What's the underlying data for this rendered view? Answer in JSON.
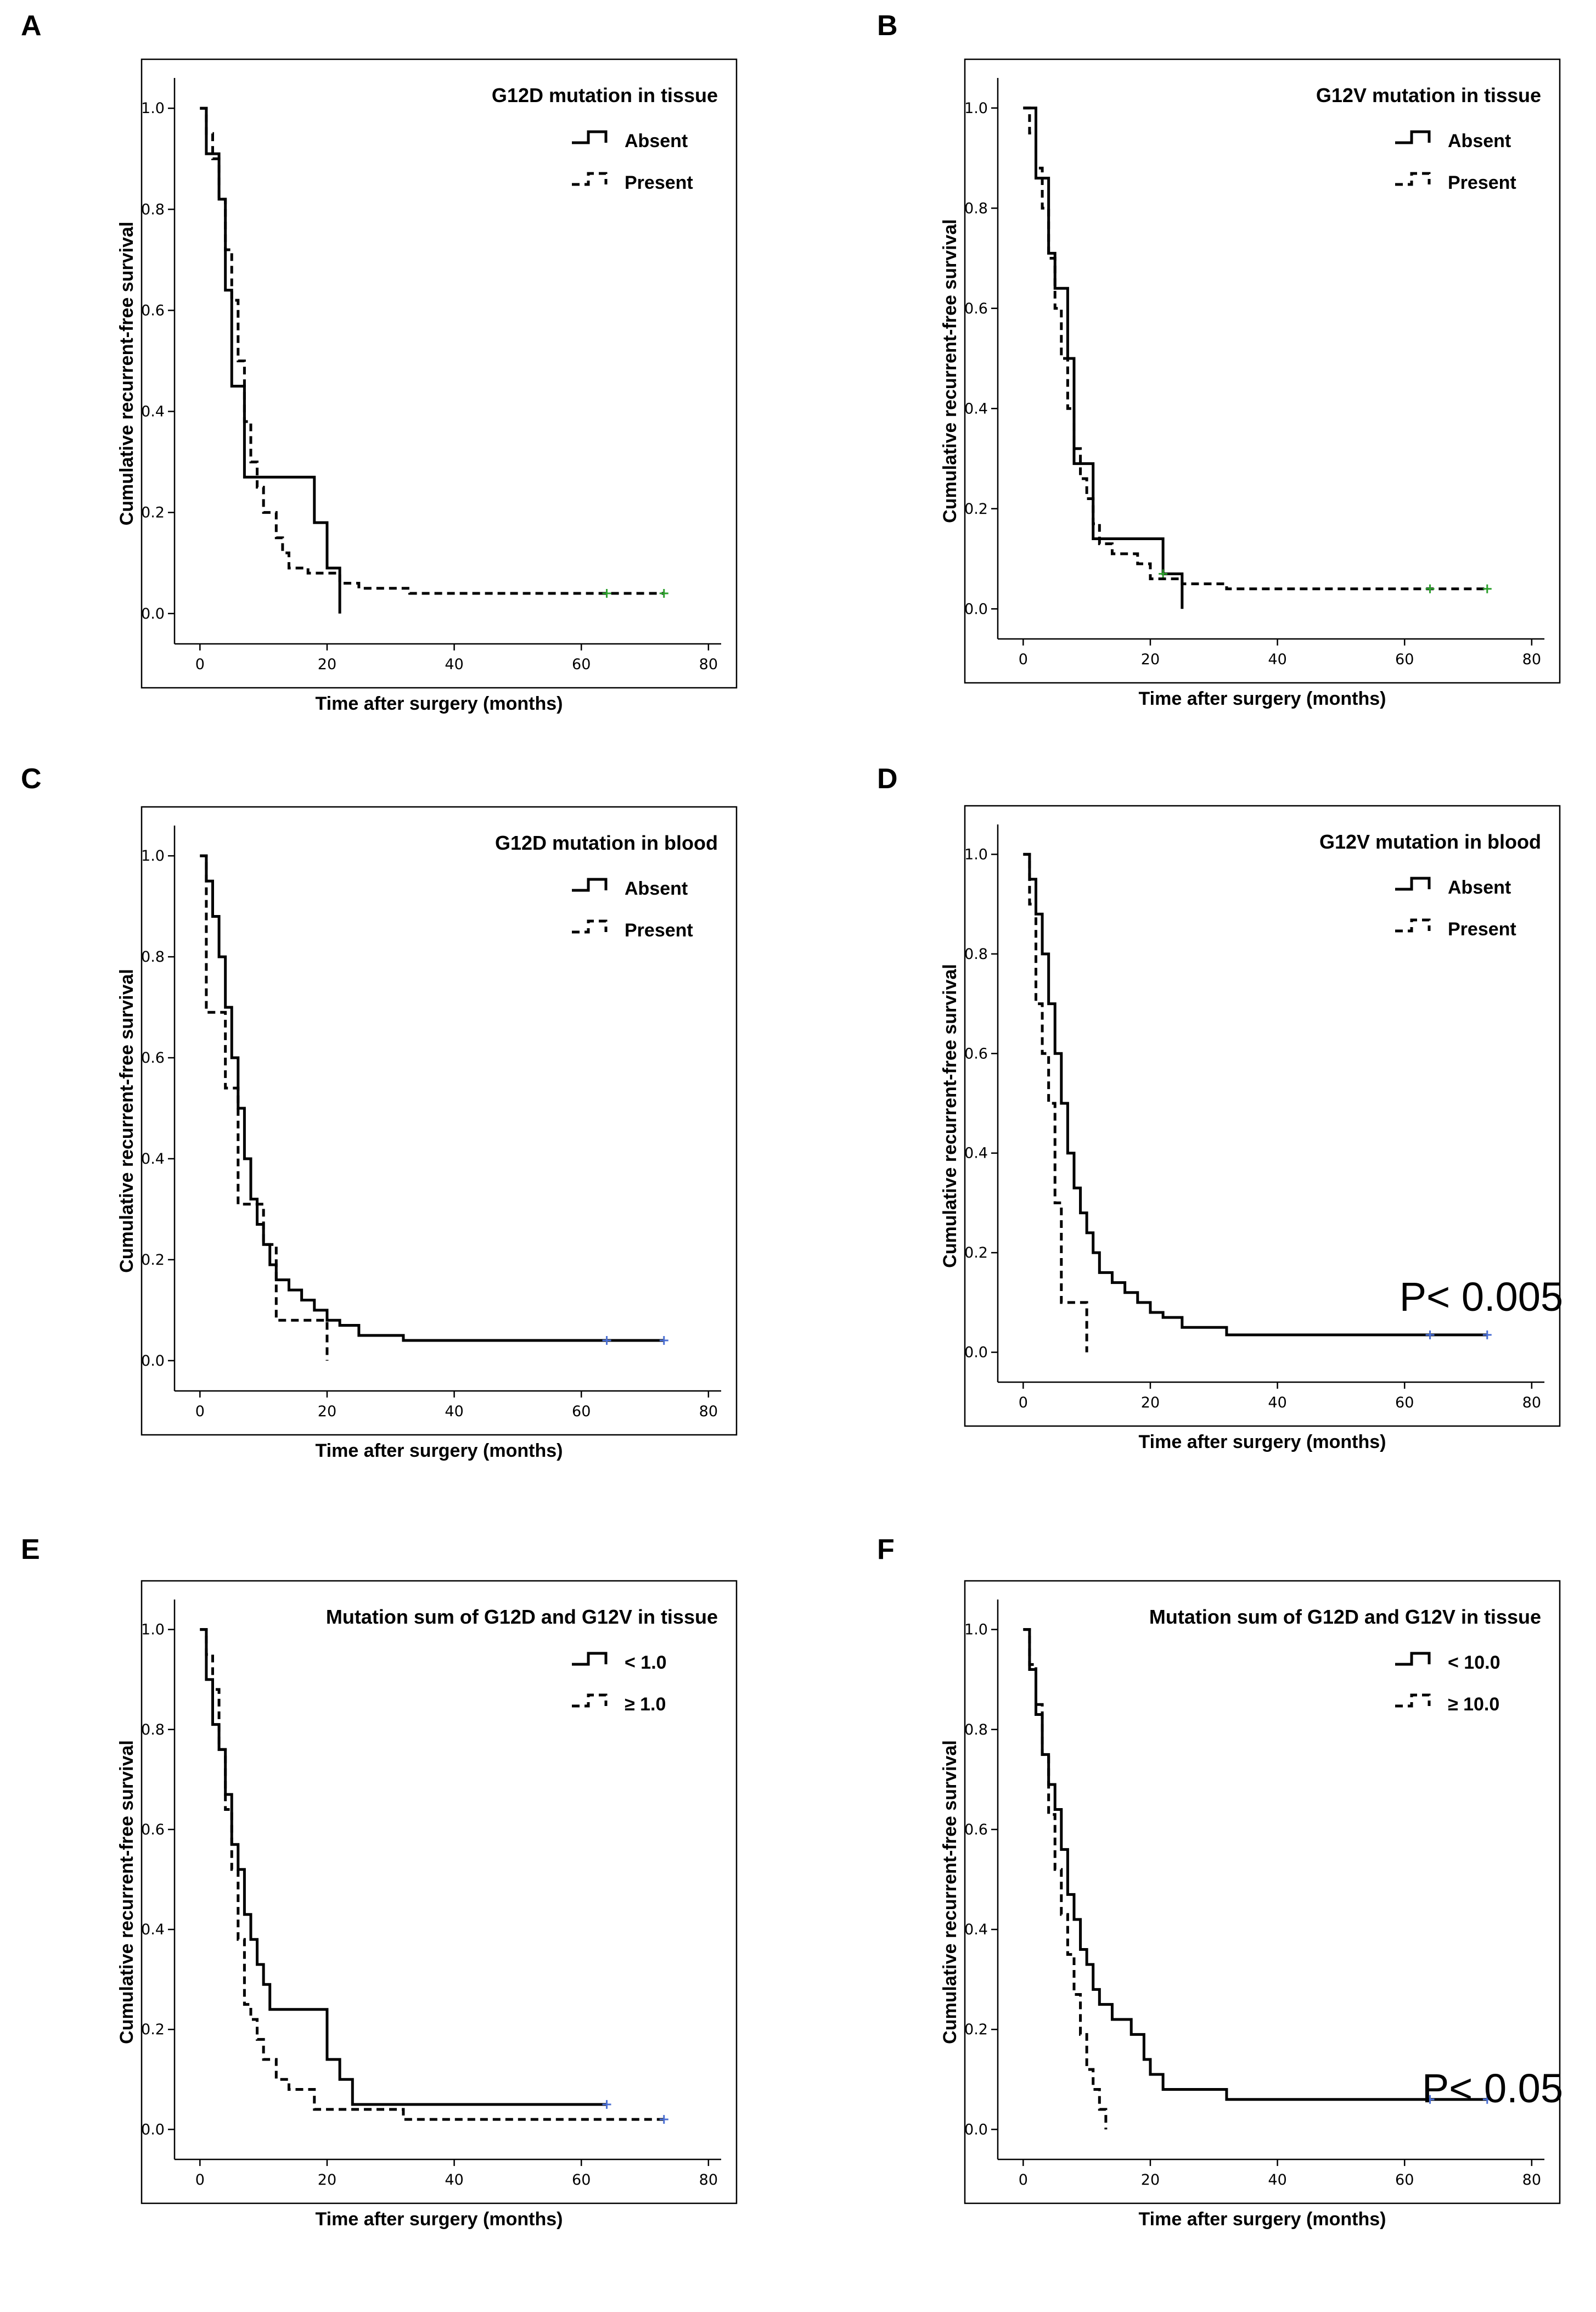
{
  "chart_data": [
    {
      "panel": "A",
      "type": "line",
      "subtype": "kaplan-meier step",
      "title": "G12D mutation in tissue",
      "xlabel": "Time after surgery (months)",
      "ylabel": "Cumulative recurrent-free survival",
      "xlim": [
        -4,
        82
      ],
      "ylim": [
        -0.06,
        1.06
      ],
      "xticks": [
        0,
        20,
        40,
        60,
        80
      ],
      "yticks": [
        0.0,
        0.2,
        0.4,
        0.6,
        0.8,
        1.0
      ],
      "xtick_labels": [
        "0",
        "20",
        "40",
        "60",
        "80"
      ],
      "ytick_labels": [
        "0.0",
        "0.2",
        "0.4",
        "0.6",
        "0.8",
        "1.0"
      ],
      "legend": [
        "Absent",
        "Present"
      ],
      "censor_color": "#2ca02c",
      "series": [
        {
          "name": "Absent",
          "style": "solid",
          "x": [
            0,
            1,
            3,
            4,
            5,
            6,
            7,
            18,
            20,
            22
          ],
          "y": [
            1.0,
            0.91,
            0.82,
            0.64,
            0.45,
            0.45,
            0.27,
            0.18,
            0.09,
            0.0
          ],
          "censored_x": []
        },
        {
          "name": "Present",
          "style": "dashed",
          "x": [
            0,
            1,
            2,
            3,
            4,
            5,
            6,
            7,
            8,
            9,
            10,
            12,
            13,
            14,
            17,
            22,
            25,
            33,
            73
          ],
          "y": [
            1.0,
            0.95,
            0.9,
            0.82,
            0.72,
            0.62,
            0.5,
            0.38,
            0.3,
            0.25,
            0.2,
            0.15,
            0.12,
            0.09,
            0.08,
            0.06,
            0.05,
            0.04,
            0.04
          ],
          "censored_x": [
            64,
            73
          ]
        }
      ]
    },
    {
      "panel": "B",
      "type": "line",
      "subtype": "kaplan-meier step",
      "title": "G12V mutation in tissue",
      "xlabel": "Time after surgery (months)",
      "ylabel": "Cumulative recurrent-free survival",
      "xlim": [
        -4,
        82
      ],
      "ylim": [
        -0.06,
        1.06
      ],
      "xticks": [
        0,
        20,
        40,
        60,
        80
      ],
      "yticks": [
        0.0,
        0.2,
        0.4,
        0.6,
        0.8,
        1.0
      ],
      "xtick_labels": [
        "0",
        "20",
        "40",
        "60",
        "80"
      ],
      "ytick_labels": [
        "0.0",
        "0.2",
        "0.4",
        "0.6",
        "0.8",
        "1.0"
      ],
      "legend": [
        "Absent",
        "Present"
      ],
      "censor_color": "#2ca02c",
      "series": [
        {
          "name": "Absent",
          "style": "solid",
          "x": [
            0,
            2,
            4,
            5,
            7,
            8,
            11,
            22,
            25
          ],
          "y": [
            1.0,
            0.86,
            0.71,
            0.64,
            0.5,
            0.29,
            0.14,
            0.07,
            0.0
          ],
          "censored_x": [
            22
          ]
        },
        {
          "name": "Present",
          "style": "dashed",
          "x": [
            0,
            1,
            2,
            3,
            4,
            5,
            6,
            7,
            8,
            9,
            10,
            11,
            12,
            14,
            18,
            20,
            25,
            32,
            73
          ],
          "y": [
            1.0,
            0.95,
            0.88,
            0.8,
            0.7,
            0.6,
            0.5,
            0.4,
            0.32,
            0.26,
            0.22,
            0.17,
            0.13,
            0.11,
            0.09,
            0.06,
            0.05,
            0.04,
            0.04
          ],
          "censored_x": [
            64,
            73
          ]
        }
      ]
    },
    {
      "panel": "C",
      "type": "line",
      "subtype": "kaplan-meier step",
      "title": "G12D mutation in blood",
      "xlabel": "Time after surgery (months)",
      "ylabel": "Cumulative recurrent-free survival",
      "xlim": [
        -4,
        82
      ],
      "ylim": [
        -0.06,
        1.06
      ],
      "xticks": [
        0,
        20,
        40,
        60,
        80
      ],
      "yticks": [
        0.0,
        0.2,
        0.4,
        0.6,
        0.8,
        1.0
      ],
      "xtick_labels": [
        "0",
        "20",
        "40",
        "60",
        "80"
      ],
      "ytick_labels": [
        "0.0",
        "0.2",
        "0.4",
        "0.6",
        "0.8",
        "1.0"
      ],
      "legend": [
        "Absent",
        "Present"
      ],
      "censor_color": "#4a6fd4",
      "series": [
        {
          "name": "Absent",
          "style": "solid",
          "x": [
            0,
            1,
            2,
            3,
            4,
            5,
            6,
            7,
            8,
            9,
            10,
            11,
            12,
            14,
            16,
            18,
            20,
            22,
            25,
            32,
            73
          ],
          "y": [
            1.0,
            0.95,
            0.88,
            0.8,
            0.7,
            0.6,
            0.5,
            0.4,
            0.32,
            0.27,
            0.23,
            0.19,
            0.16,
            0.14,
            0.12,
            0.1,
            0.08,
            0.07,
            0.05,
            0.04,
            0.04
          ],
          "censored_x": [
            64,
            73
          ]
        },
        {
          "name": "Present",
          "style": "dashed",
          "x": [
            0,
            1,
            4,
            6,
            10,
            12,
            19,
            20
          ],
          "y": [
            1.0,
            0.69,
            0.54,
            0.31,
            0.23,
            0.08,
            0.08,
            0.0
          ],
          "censored_x": []
        }
      ]
    },
    {
      "panel": "D",
      "type": "line",
      "subtype": "kaplan-meier step",
      "title": "G12V mutation in blood",
      "xlabel": "Time after surgery (months)",
      "ylabel": "Cumulative recurrent-free survival",
      "xlim": [
        -4,
        82
      ],
      "ylim": [
        -0.06,
        1.06
      ],
      "xticks": [
        0,
        20,
        40,
        60,
        80
      ],
      "yticks": [
        0.0,
        0.2,
        0.4,
        0.6,
        0.8,
        1.0
      ],
      "xtick_labels": [
        "0",
        "20",
        "40",
        "60",
        "80"
      ],
      "ytick_labels": [
        "0.0",
        "0.2",
        "0.4",
        "0.6",
        "0.8",
        "1.0"
      ],
      "legend": [
        "Absent",
        "Present"
      ],
      "annotation": "P< 0.005",
      "censor_color": "#4a6fd4",
      "series": [
        {
          "name": "Absent",
          "style": "solid",
          "x": [
            0,
            1,
            2,
            3,
            4,
            5,
            6,
            7,
            8,
            9,
            10,
            11,
            12,
            14,
            16,
            18,
            20,
            22,
            25,
            32,
            73
          ],
          "y": [
            1.0,
            0.95,
            0.88,
            0.8,
            0.7,
            0.6,
            0.5,
            0.4,
            0.33,
            0.28,
            0.24,
            0.2,
            0.16,
            0.14,
            0.12,
            0.1,
            0.08,
            0.07,
            0.05,
            0.035,
            0.035
          ],
          "censored_x": [
            64,
            73
          ]
        },
        {
          "name": "Present",
          "style": "dashed",
          "x": [
            0,
            1,
            2,
            3,
            4,
            5,
            6,
            10
          ],
          "y": [
            1.0,
            0.9,
            0.7,
            0.6,
            0.5,
            0.3,
            0.1,
            0.0
          ],
          "censored_x": []
        }
      ]
    },
    {
      "panel": "E",
      "type": "line",
      "subtype": "kaplan-meier step",
      "title": "Mutation sum of G12D and G12V in tissue",
      "xlabel": "Time after surgery (months)",
      "ylabel": "Cumulative recurrent-free survival",
      "xlim": [
        -4,
        82
      ],
      "ylim": [
        -0.06,
        1.06
      ],
      "xticks": [
        0,
        20,
        40,
        60,
        80
      ],
      "yticks": [
        0.0,
        0.2,
        0.4,
        0.6,
        0.8,
        1.0
      ],
      "xtick_labels": [
        "0",
        "20",
        "40",
        "60",
        "80"
      ],
      "ytick_labels": [
        "0.0",
        "0.2",
        "0.4",
        "0.6",
        "0.8",
        "1.0"
      ],
      "legend": [
        "< 1.0",
        "≥ 1.0"
      ],
      "censor_color": "#4a6fd4",
      "series": [
        {
          "name": "< 1.0",
          "style": "solid",
          "x": [
            0,
            1,
            2,
            3,
            4,
            5,
            6,
            7,
            8,
            9,
            10,
            11,
            12,
            20,
            22,
            24,
            25,
            64
          ],
          "y": [
            1.0,
            0.9,
            0.81,
            0.76,
            0.67,
            0.57,
            0.52,
            0.43,
            0.38,
            0.33,
            0.29,
            0.24,
            0.24,
            0.14,
            0.1,
            0.05,
            0.05,
            0.05
          ],
          "censored_x": [
            64
          ]
        },
        {
          "name": "≥ 1.0",
          "style": "dashed",
          "x": [
            0,
            1,
            2,
            3,
            4,
            5,
            6,
            7,
            8,
            9,
            10,
            12,
            14,
            18,
            25,
            32,
            73
          ],
          "y": [
            1.0,
            0.95,
            0.88,
            0.76,
            0.64,
            0.52,
            0.38,
            0.25,
            0.22,
            0.18,
            0.14,
            0.1,
            0.08,
            0.04,
            0.04,
            0.02,
            0.02
          ],
          "censored_x": [
            73
          ]
        }
      ]
    },
    {
      "panel": "F",
      "type": "line",
      "subtype": "kaplan-meier step",
      "title": "Mutation sum of G12D and G12V in tissue",
      "xlabel": "Time after surgery (months)",
      "ylabel": "Cumulative recurrent-free survival",
      "xlim": [
        -4,
        82
      ],
      "ylim": [
        -0.06,
        1.06
      ],
      "xticks": [
        0,
        20,
        40,
        60,
        80
      ],
      "yticks": [
        0.0,
        0.2,
        0.4,
        0.6,
        0.8,
        1.0
      ],
      "xtick_labels": [
        "0",
        "20",
        "40",
        "60",
        "80"
      ],
      "ytick_labels": [
        "0.0",
        "0.2",
        "0.4",
        "0.6",
        "0.8",
        "1.0"
      ],
      "legend": [
        "< 10.0",
        "≥ 10.0"
      ],
      "annotation": "P< 0.05",
      "censor_color": "#4a6fd4",
      "series": [
        {
          "name": "< 10.0",
          "style": "solid",
          "x": [
            0,
            1,
            2,
            3,
            4,
            5,
            6,
            7,
            8,
            9,
            10,
            11,
            12,
            14,
            17,
            19,
            20,
            22,
            24,
            32,
            73
          ],
          "y": [
            1.0,
            0.92,
            0.83,
            0.75,
            0.69,
            0.64,
            0.56,
            0.47,
            0.42,
            0.36,
            0.33,
            0.28,
            0.25,
            0.22,
            0.19,
            0.14,
            0.11,
            0.08,
            0.08,
            0.06,
            0.06
          ],
          "censored_x": [
            64,
            73
          ]
        },
        {
          "name": "≥ 10.0",
          "style": "dashed",
          "x": [
            0,
            1,
            2,
            3,
            4,
            5,
            6,
            7,
            8,
            9,
            10,
            11,
            12,
            13
          ],
          "y": [
            1.0,
            0.93,
            0.85,
            0.75,
            0.63,
            0.52,
            0.43,
            0.35,
            0.27,
            0.19,
            0.12,
            0.08,
            0.04,
            0.0
          ],
          "censored_x": []
        }
      ]
    }
  ]
}
